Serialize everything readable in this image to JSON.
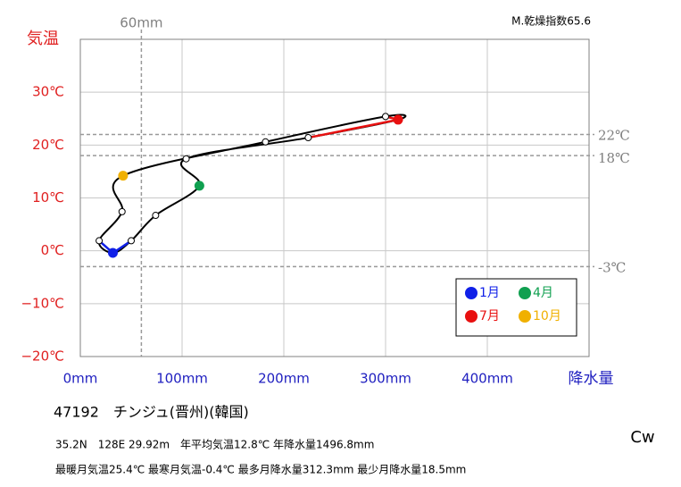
{
  "chart_data": {
    "type": "climograph",
    "y_label": "気温",
    "x_label": "降水量",
    "dryness_index": "M.乾燥指数65.6",
    "x": [
      32,
      50,
      74,
      117,
      104,
      224,
      312.3,
      300,
      182,
      42,
      41,
      18.5
    ],
    "values": [
      -0.4,
      1.9,
      6.7,
      12.3,
      17.4,
      21.4,
      24.8,
      25.4,
      20.6,
      14.2,
      7.4,
      1.9
    ],
    "xlim": [
      0,
      500
    ],
    "ylim": [
      -20,
      40
    ],
    "xticks": [
      {
        "value": 0,
        "label": "0mm"
      },
      {
        "value": 100,
        "label": "100mm"
      },
      {
        "value": 200,
        "label": "200mm"
      },
      {
        "value": 300,
        "label": "300mm"
      },
      {
        "value": 400,
        "label": "400mm"
      }
    ],
    "yticks": [
      {
        "value": -20,
        "label": "−20℃"
      },
      {
        "value": -10,
        "label": "−10℃"
      },
      {
        "value": 0,
        "label": "0℃"
      },
      {
        "value": 10,
        "label": "10℃"
      },
      {
        "value": 20,
        "label": "20℃"
      },
      {
        "value": 30,
        "label": "30℃"
      }
    ],
    "grid": true,
    "y_reference": [
      {
        "value": 22,
        "label": "22℃"
      },
      {
        "value": 18,
        "label": "18℃"
      },
      {
        "value": -3,
        "label": "-3℃"
      }
    ],
    "x_reference": [
      {
        "value": 60,
        "label": "60mm"
      }
    ],
    "legend": [
      {
        "name": "1月",
        "month": 1,
        "color": "#1020e8"
      },
      {
        "name": "4月",
        "month": 4,
        "color": "#10a050"
      },
      {
        "name": "7月",
        "month": 7,
        "color": "#e81010"
      },
      {
        "name": "10月",
        "month": 10,
        "color": "#f0b000"
      }
    ],
    "station": "47192　チンジュ(晋州)(韓国)",
    "info1": "35.2N　128E 29.92m　年平均気温12.8℃ 年降水量1496.8mm",
    "info2": "最暖月気温25.4℃ 最寒月気温-0.4℃ 最多月降水量312.3mm 最少月降水量18.5mm",
    "climate": "Cw"
  }
}
